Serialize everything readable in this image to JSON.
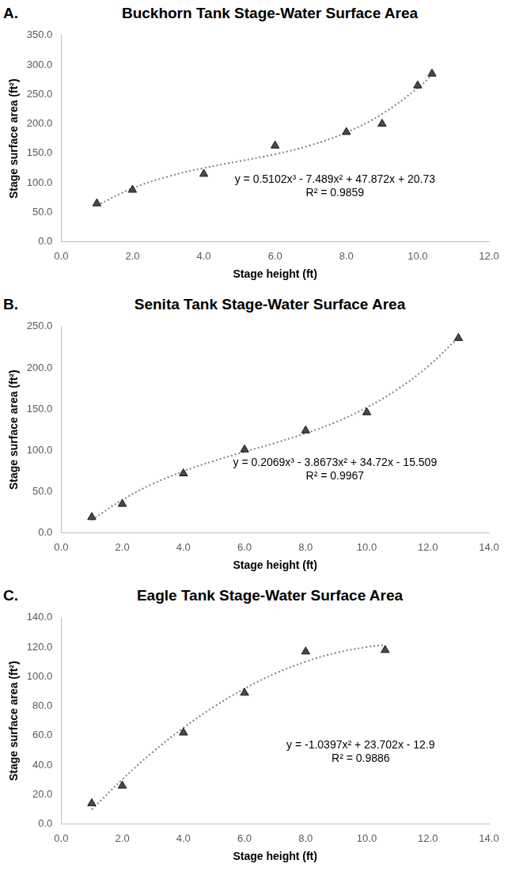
{
  "chart_data": [
    {
      "type": "scatter",
      "panel": "A.",
      "title": "Buckhorn Tank Stage-Water Surface Area",
      "x_label": "Stage height (ft)",
      "y_label": "Stage surface area (ft²)",
      "x": [
        1,
        2,
        4,
        6,
        8,
        9,
        10,
        10.4
      ],
      "values": [
        65,
        88,
        115,
        163,
        186,
        200,
        265,
        285
      ],
      "color": "#404b56",
      "marker": "triangle",
      "trendline": {
        "x": [
          1,
          2,
          3,
          4,
          5,
          6,
          7,
          8,
          9,
          10,
          10.4
        ],
        "values": [
          61.6,
          90.6,
          110.7,
          125.1,
          136.7,
          148.5,
          163.8,
          185.6,
          216.8,
          260.7,
          282.5
        ],
        "color": "#808080",
        "line_style": "dotted"
      },
      "annotations": [
        "y = 0.5102x³ - 7.489x² + 47.872x + 20.73",
        "R² = 0.9859"
      ],
      "xlim": [
        0,
        12
      ],
      "xticks": [
        {
          "value": 0,
          "label": "0.0"
        },
        {
          "value": 2,
          "label": "2.0"
        },
        {
          "value": 4,
          "label": "4.0"
        },
        {
          "value": 6,
          "label": "6.0"
        },
        {
          "value": 8,
          "label": "8.0"
        },
        {
          "value": 10,
          "label": "10.0"
        },
        {
          "value": 12,
          "label": "12.0"
        }
      ],
      "ylim": [
        0,
        350
      ],
      "yticks": [
        {
          "value": 0,
          "label": "0.0"
        },
        {
          "value": 50,
          "label": "50.0"
        },
        {
          "value": 100,
          "label": "100.0"
        },
        {
          "value": 150,
          "label": "150.0"
        },
        {
          "value": 200,
          "label": "200.0"
        },
        {
          "value": 250,
          "label": "250.0"
        },
        {
          "value": 300,
          "label": "300.0"
        },
        {
          "value": 350,
          "label": "350.0"
        }
      ],
      "grid": false
    },
    {
      "type": "scatter",
      "panel": "B.",
      "title": "Senita Tank Stage-Water Surface Area",
      "x_label": "Stage height (ft)",
      "y_label": "Stage surface area (ft²)",
      "x": [
        1,
        2,
        4,
        6,
        8,
        10,
        13
      ],
      "values": [
        19,
        35,
        72,
        101,
        124,
        146,
        236
      ],
      "color": "#404b56",
      "marker": "triangle",
      "trendline": {
        "x": [
          1,
          2,
          3,
          4,
          5,
          6,
          7,
          8,
          9,
          10,
          11,
          12,
          13
        ],
        "values": [
          15.6,
          40.1,
          59.4,
          74.7,
          87.3,
          98.3,
          109.0,
          120.7,
          134.5,
          151.9,
          173.9,
          201.7,
          236.9
        ],
        "color": "#808080",
        "line_style": "dotted"
      },
      "annotations": [
        "y = 0.2069x³ - 3.8673x² + 34.72x - 15.509",
        "R² = 0.9967"
      ],
      "xlim": [
        0,
        14
      ],
      "xticks": [
        {
          "value": 0,
          "label": "0.0"
        },
        {
          "value": 2,
          "label": "2.0"
        },
        {
          "value": 4,
          "label": "4.0"
        },
        {
          "value": 6,
          "label": "6.0"
        },
        {
          "value": 8,
          "label": "8.0"
        },
        {
          "value": 10,
          "label": "10.0"
        },
        {
          "value": 12,
          "label": "12.0"
        },
        {
          "value": 14,
          "label": "14.0"
        }
      ],
      "ylim": [
        0,
        250
      ],
      "yticks": [
        {
          "value": 0,
          "label": "0.0"
        },
        {
          "value": 50,
          "label": "50.0"
        },
        {
          "value": 100,
          "label": "100.0"
        },
        {
          "value": 150,
          "label": "150.0"
        },
        {
          "value": 200,
          "label": "200.0"
        },
        {
          "value": 250,
          "label": "250.0"
        }
      ],
      "grid": false
    },
    {
      "type": "scatter",
      "panel": "C.",
      "title": "Eagle Tank Stage-Water Surface Area",
      "x_label": "Stage height (ft)",
      "y_label": "Stage surface area (ft²)",
      "x": [
        1,
        2,
        4,
        6,
        8,
        10.6
      ],
      "values": [
        14,
        26,
        62,
        89,
        117,
        118
      ],
      "color": "#404b56",
      "marker": "triangle",
      "trendline": {
        "x": [
          1,
          2,
          3,
          4,
          5,
          6,
          7,
          8,
          9,
          10,
          10.6
        ],
        "values": [
          9.8,
          30.3,
          48.9,
          65.3,
          79.6,
          91.9,
          102.1,
          110.2,
          116.2,
          120.1,
          121.5
        ],
        "color": "#808080",
        "line_style": "dotted"
      },
      "annotations": [
        "y = -1.0397x² + 23.702x - 12.9",
        "R² = 0.9886"
      ],
      "xlim": [
        0,
        14
      ],
      "xticks": [
        {
          "value": 0,
          "label": "0.0"
        },
        {
          "value": 2,
          "label": "2.0"
        },
        {
          "value": 4,
          "label": "4.0"
        },
        {
          "value": 6,
          "label": "6.0"
        },
        {
          "value": 8,
          "label": "8.0"
        },
        {
          "value": 10,
          "label": "10.0"
        },
        {
          "value": 12,
          "label": "12.0"
        },
        {
          "value": 14,
          "label": "14.0"
        }
      ],
      "ylim": [
        0,
        140
      ],
      "yticks": [
        {
          "value": 0,
          "label": "0.0"
        },
        {
          "value": 20,
          "label": "20.0"
        },
        {
          "value": 40,
          "label": "40.0"
        },
        {
          "value": 60,
          "label": "60.0"
        },
        {
          "value": 80,
          "label": "80.0"
        },
        {
          "value": 100,
          "label": "100.0"
        },
        {
          "value": 120,
          "label": "120.0"
        },
        {
          "value": 140,
          "label": "140.0"
        }
      ],
      "grid": false
    }
  ]
}
